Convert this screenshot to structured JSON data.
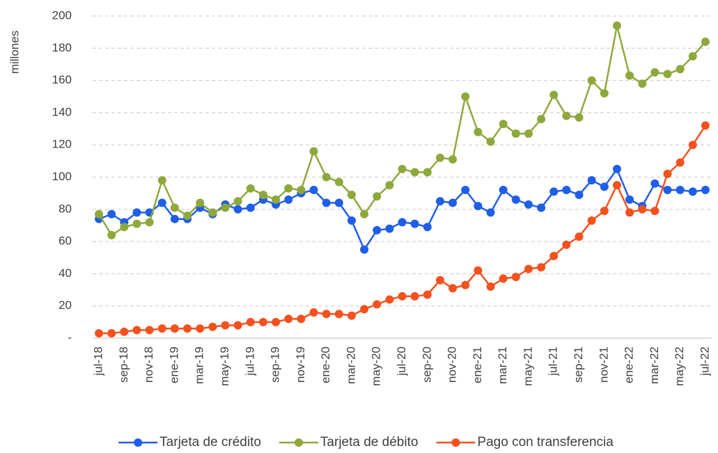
{
  "chart_data": {
    "type": "line",
    "ylabel": "millones",
    "categories": [
      "jul-18",
      null,
      "sep-18",
      null,
      "nov-18",
      null,
      "ene-19",
      null,
      "mar-19",
      null,
      "may-19",
      null,
      "jul-19",
      null,
      "sep-19",
      null,
      "nov-19",
      null,
      "ene-20",
      null,
      "mar-20",
      null,
      "may-20",
      null,
      "jul-20",
      null,
      "sep-20",
      null,
      "nov-20",
      null,
      "ene-21",
      null,
      "mar-21",
      null,
      "may-21",
      null,
      "jul-21",
      null,
      "sep-21",
      null,
      "nov-21",
      null,
      "ene-22",
      null,
      "mar-22",
      null,
      "may-22",
      null,
      "jul-22"
    ],
    "series": [
      {
        "name": "Tarjeta de crédito",
        "color": "#1f5ee6",
        "values": [
          74,
          77,
          72,
          78,
          78,
          84,
          74,
          74,
          81,
          77,
          83,
          80,
          81,
          86,
          83,
          86,
          90,
          92,
          84,
          84,
          73,
          55,
          67,
          68,
          72,
          71,
          69,
          85,
          84,
          92,
          82,
          78,
          92,
          86,
          83,
          81,
          91,
          92,
          89,
          98,
          94,
          105,
          86,
          82,
          96,
          92,
          92,
          91,
          92
        ]
      },
      {
        "name": "Tarjeta de débito",
        "color": "#8fa83c",
        "values": [
          77,
          64,
          69,
          71,
          72,
          98,
          81,
          76,
          84,
          78,
          81,
          85,
          93,
          89,
          86,
          93,
          92,
          116,
          100,
          97,
          89,
          77,
          88,
          95,
          105,
          103,
          103,
          112,
          111,
          150,
          128,
          122,
          133,
          127,
          127,
          136,
          151,
          138,
          137,
          160,
          152,
          194,
          163,
          158,
          165,
          164,
          167,
          175,
          184
        ]
      },
      {
        "name": "Pago con transferencia",
        "color": "#f4511e",
        "values": [
          3,
          3,
          4,
          5,
          5,
          6,
          6,
          6,
          6,
          7,
          8,
          8,
          10,
          10,
          10,
          12,
          12,
          16,
          15,
          15,
          14,
          18,
          21,
          24,
          26,
          26,
          27,
          36,
          31,
          33,
          42,
          32,
          37,
          38,
          43,
          44,
          51,
          58,
          63,
          73,
          79,
          95,
          78,
          80,
          79,
          102,
          109,
          120,
          132
        ]
      }
    ],
    "ylim": [
      0,
      200
    ],
    "yticks": [
      {
        "value": 0,
        "label": "-"
      },
      20,
      40,
      60,
      80,
      100,
      120,
      140,
      160,
      180,
      200
    ],
    "grid": true,
    "legend": "bottom"
  }
}
